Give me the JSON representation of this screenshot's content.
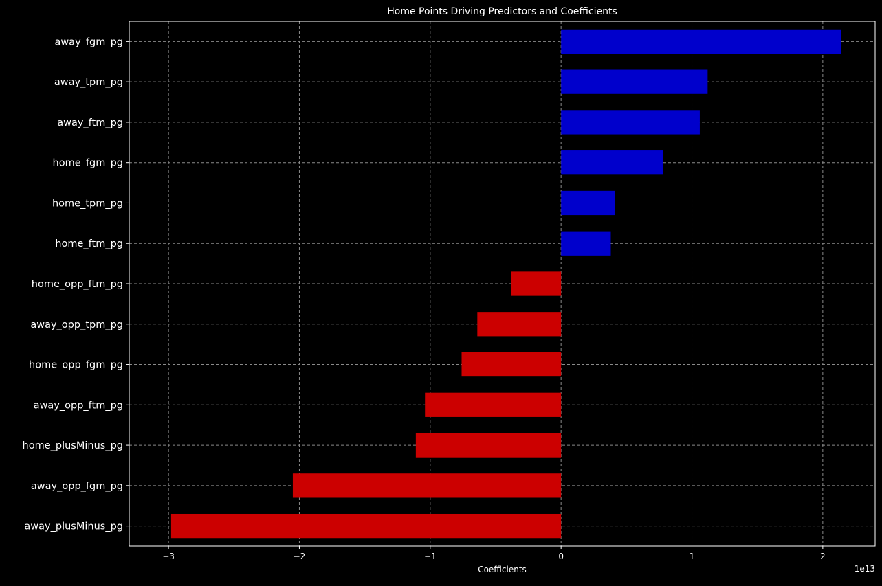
{
  "chart_data": {
    "type": "bar",
    "orientation": "horizontal",
    "title": "Home Points Driving Predictors and Coefficients",
    "xlabel": "Coefficients",
    "ylabel": "",
    "x_scale_offset": "1e13",
    "xlim": [
      -3.3,
      2.4
    ],
    "x_ticks": [
      -3,
      -2,
      -1,
      0,
      1,
      2
    ],
    "x_tick_labels": [
      "−3",
      "−2",
      "−1",
      "0",
      "1",
      "2"
    ],
    "grid": true,
    "legend": "none",
    "colors": {
      "positive": "#0000cc",
      "negative": "#cc0000",
      "background": "#000000",
      "grid": "#8a8a8a",
      "axis": "#ffffff",
      "text": "#ffffff"
    },
    "categories": [
      "away_fgm_pg",
      "away_tpm_pg",
      "away_ftm_pg",
      "home_fgm_pg",
      "home_tpm_pg",
      "home_ftm_pg",
      "home_opp_ftm_pg",
      "away_opp_tpm_pg",
      "home_opp_fgm_pg",
      "away_opp_ftm_pg",
      "home_plusMinus_pg",
      "away_opp_fgm_pg",
      "away_plusMinus_pg"
    ],
    "values": [
      2.14,
      1.12,
      1.06,
      0.78,
      0.41,
      0.38,
      -0.38,
      -0.64,
      -0.76,
      -1.04,
      -1.11,
      -2.05,
      -2.98
    ]
  }
}
